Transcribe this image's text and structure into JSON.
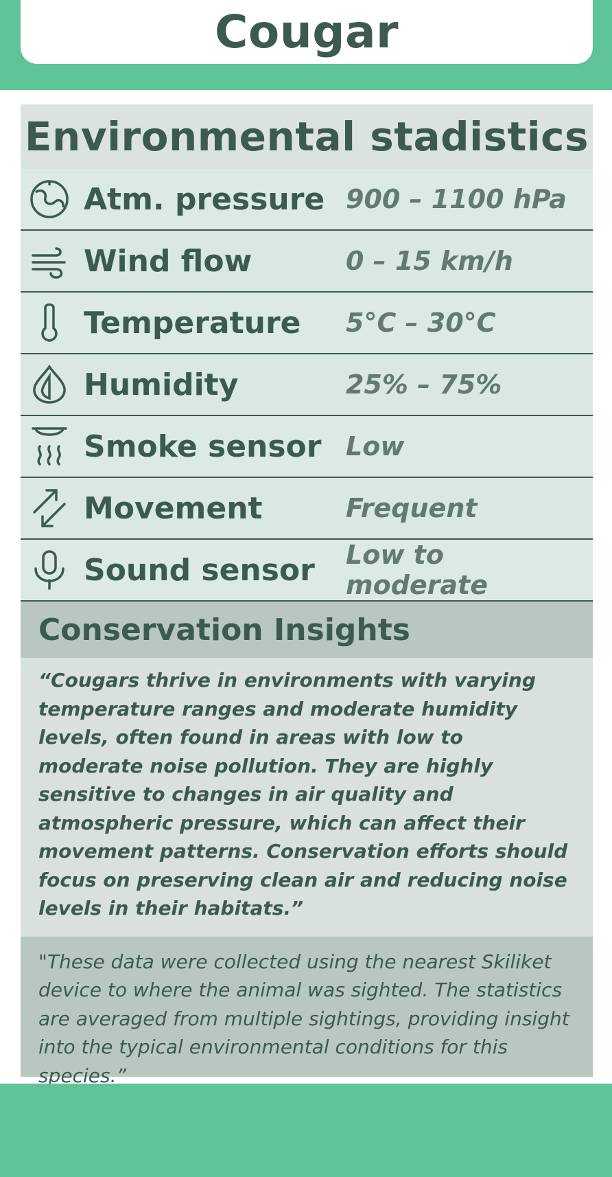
{
  "header": {
    "title": "Cougar"
  },
  "stats": {
    "title": "Environmental  stadistics",
    "rows": [
      {
        "icon": "gauge-icon",
        "label": "Atm. pressure",
        "value": "900 – 1100 hPa"
      },
      {
        "icon": "wind-icon",
        "label": "Wind flow",
        "value": "0 – 15 km/h"
      },
      {
        "icon": "thermometer-icon",
        "label": "Temperature",
        "value": "5°C – 30°C"
      },
      {
        "icon": "droplet-icon",
        "label": "Humidity",
        "value": "25% – 75%"
      },
      {
        "icon": "smoke-detector-icon",
        "label": "Smoke sensor",
        "value": "Low"
      },
      {
        "icon": "movement-arrows-icon",
        "label": "Movement",
        "value": "Frequent"
      },
      {
        "icon": "microphone-icon",
        "label": "Sound sensor",
        "value": "Low to moderate"
      }
    ]
  },
  "insights": {
    "title": "Conservation Insights",
    "text": "“Cougars thrive in environments with varying temperature ranges and moderate humidity levels, often found in areas with low to moderate noise pollution. They are highly sensitive to changes in air quality and atmospheric pressure, which can affect their movement patterns. Conservation efforts should focus on preserving clean air and reducing noise levels in their habitats.”"
  },
  "note": {
    "text": "\"These data were collected using the nearest Skiliket device to where the animal was sighted. The statistics are averaged from multiple sightings, providing insight into the typical environmental conditions for this species.”"
  },
  "colors": {
    "accent_green": "#5ec497",
    "text_dark": "#3d5a4f",
    "value_text": "#627a70"
  }
}
